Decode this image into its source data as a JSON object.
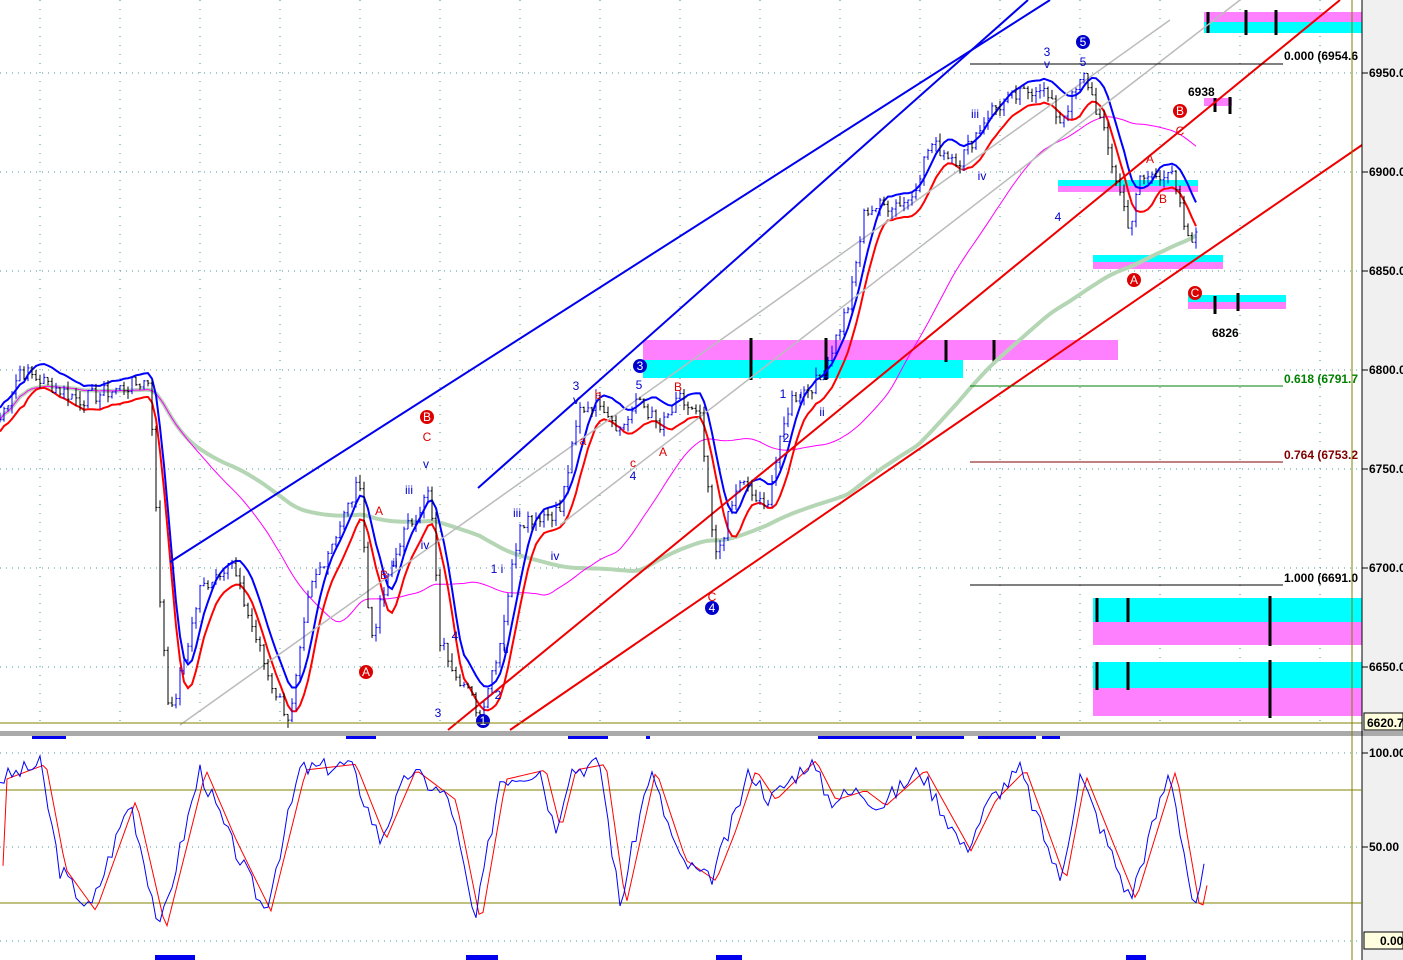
{
  "chart_data": [
    {
      "type": "line",
      "panel": "price",
      "title": "",
      "y_ticks": [
        "6950.0",
        "6900.0",
        "6850.0",
        "6800.0",
        "6750.0",
        "6700.0",
        "6650.0"
      ],
      "ylim": [
        6620.7,
        6987
      ],
      "last_value_label": "6620.7",
      "grid": true,
      "price_keypoints": {
        "x": [
          0,
          4,
          16,
          30,
          32,
          34,
          40,
          46,
          54,
          58,
          62,
          72,
          74,
          80,
          86,
          88,
          96,
          100,
          104,
          112,
          116,
          120,
          124,
          128,
          132,
          136,
          140,
          143,
          148,
          153,
          158,
          164,
          170,
          173,
          182,
          186,
          192,
          198,
          208,
          212,
          217,
          220,
          226,
          228,
          234,
          238,
          240
        ],
        "y": [
          6775,
          6800,
          6785,
          6795,
          6684,
          6623,
          6689,
          6704,
          6643,
          6623,
          6689,
          6744,
          6663,
          6714,
          6739,
          6663,
          6626,
          6663,
          6724,
          6729,
          6780,
          6785,
          6770,
          6785,
          6770,
          6785,
          6775,
          6704,
          6744,
          6729,
          6785,
          6795,
          6835,
          6881,
          6886,
          6914,
          6906,
          6931,
          6944,
          6926,
          6949,
          6926,
          6871,
          6896,
          6901,
          6861,
          6881
        ]
      },
      "fib_levels": [
        {
          "label": "0.000 (6954.6",
          "color": "#000000"
        },
        {
          "label": "0.618 (6791.7",
          "color": "#008000"
        },
        {
          "label": "0.764 (6753.2",
          "color": "#800000"
        },
        {
          "label": "1.000 (6691.0",
          "color": "#000000"
        }
      ],
      "price_annotations": [
        "6938",
        "6826"
      ],
      "wave_labels": [
        {
          "text": "5",
          "color": "#0000cc",
          "circled": true
        },
        {
          "text": "3",
          "color": "#0000cc",
          "circled": false
        },
        {
          "text": "v",
          "color": "#0000cc",
          "circled": false
        },
        {
          "text": "5",
          "color": "#0000cc",
          "circled": false
        },
        {
          "text": "iii",
          "color": "#0000cc",
          "circled": false
        },
        {
          "text": "iv",
          "color": "#0000cc",
          "circled": false
        },
        {
          "text": "4",
          "color": "#0000cc",
          "circled": false
        },
        {
          "text": "B",
          "color": "#dd0000",
          "circled": true
        },
        {
          "text": "C",
          "color": "#dd0000",
          "circled": false
        },
        {
          "text": "A",
          "color": "#dd0000",
          "circled": false
        },
        {
          "text": "B",
          "color": "#dd0000",
          "circled": false
        },
        {
          "text": "A",
          "color": "#dd0000",
          "circled": true
        },
        {
          "text": "C",
          "color": "#dd0000",
          "circled": true
        },
        {
          "text": "3",
          "color": "#0000cc",
          "circled": true
        },
        {
          "text": "5",
          "color": "#0000cc",
          "circled": false
        },
        {
          "text": "3",
          "color": "#0000cc",
          "circled": false
        },
        {
          "text": "v",
          "color": "#0000cc",
          "circled": false
        },
        {
          "text": "b",
          "color": "#dd0000",
          "circled": false
        },
        {
          "text": "a",
          "color": "#dd0000",
          "circled": false
        },
        {
          "text": "c",
          "color": "#dd0000",
          "circled": false
        },
        {
          "text": "4",
          "color": "#0000cc",
          "circled": false
        },
        {
          "text": "A",
          "color": "#dd0000",
          "circled": false
        },
        {
          "text": "B",
          "color": "#dd0000",
          "circled": false
        },
        {
          "text": "1",
          "color": "#0000cc",
          "circled": false
        },
        {
          "text": "i",
          "color": "#0000cc",
          "circled": false
        },
        {
          "text": "ii",
          "color": "#0000cc",
          "circled": false
        },
        {
          "text": "2",
          "color": "#0000cc",
          "circled": false
        },
        {
          "text": "C",
          "color": "#dd0000",
          "circled": false
        },
        {
          "text": "4",
          "color": "#0000cc",
          "circled": true
        },
        {
          "text": "B",
          "color": "#dd0000",
          "circled": true
        },
        {
          "text": "C",
          "color": "#dd0000",
          "circled": false
        },
        {
          "text": "v",
          "color": "#0000cc",
          "circled": false
        },
        {
          "text": "iii",
          "color": "#0000cc",
          "circled": false
        },
        {
          "text": "iv",
          "color": "#0000cc",
          "circled": false
        },
        {
          "text": "A",
          "color": "#dd0000",
          "circled": false
        },
        {
          "text": "B",
          "color": "#dd0000",
          "circled": false
        },
        {
          "text": "ii",
          "color": "#0000cc",
          "circled": false
        },
        {
          "text": "A",
          "color": "#dd0000",
          "circled": true
        },
        {
          "text": "4",
          "color": "#0000cc",
          "circled": false
        },
        {
          "text": "3",
          "color": "#0000cc",
          "circled": false
        },
        {
          "text": "1",
          "color": "#0000cc",
          "circled": true
        },
        {
          "text": "iii",
          "color": "#0000cc",
          "circled": false
        },
        {
          "text": "iv",
          "color": "#0000cc",
          "circled": false
        },
        {
          "text": "1 i",
          "color": "#0000cc",
          "circled": false
        },
        {
          "text": "ii",
          "color": "#0000cc",
          "circled": false
        },
        {
          "text": "2",
          "color": "#0000cc",
          "circled": false
        }
      ],
      "colors": {
        "upper_band": "#0000ff",
        "lower_band": "#ff0000",
        "ma_fast": "#ff00ff",
        "ma_slow": "#b5d6b5",
        "zone_cyan": "#00ffff",
        "zone_magenta": "#ff80ff"
      }
    },
    {
      "type": "line",
      "panel": "stochastic",
      "y_ticks": [
        "100.00",
        "50.00"
      ],
      "last_value_label": "0.00",
      "ylim": [
        0,
        100
      ],
      "series_keypoints": {
        "x": [
          0,
          8,
          12,
          18,
          26,
          32,
          40,
          46,
          53,
          60,
          70,
          76,
          82,
          90,
          95,
          100,
          108,
          111,
          114,
          120,
          124,
          130,
          136,
          142,
          146,
          150,
          154,
          162,
          166,
          172,
          176,
          184,
          193,
          198,
          204,
          212,
          216,
          226,
          234,
          239,
          241
        ],
        "y": [
          86,
          94,
          38,
          16,
          75,
          6,
          91,
          54,
          16,
          91,
          94,
          54,
          91,
          75,
          9,
          86,
          91,
          59,
          91,
          94,
          19,
          91,
          43,
          32,
          59,
          91,
          75,
          96,
          75,
          80,
          72,
          91,
          48,
          75,
          91,
          32,
          88,
          22,
          91,
          14,
          40
        ]
      },
      "colors": {
        "k": "#0000ff",
        "d": "#ff0000"
      }
    }
  ]
}
